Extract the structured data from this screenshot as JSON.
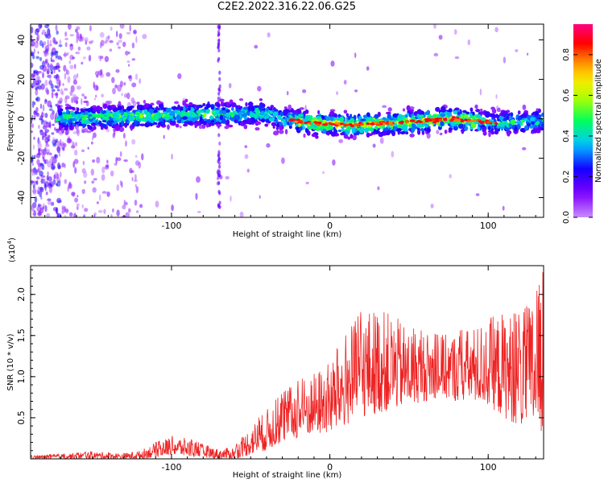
{
  "page_title": "C2E2.2022.316.22.06.G25",
  "chart_data": [
    {
      "type": "heatmap",
      "title": "C2E2.2022.316.22.06.G25",
      "xlabel": "Height of straight line (km)",
      "ylabel": "Frequency (Hz)",
      "xlim": [
        -189,
        135
      ],
      "ylim": [
        -50,
        48
      ],
      "x_ticks": [
        -100,
        0,
        100
      ],
      "y_ticks": [
        -40,
        -20,
        0,
        20,
        40
      ],
      "colorbar": {
        "label": "Normalized spectral amplitude",
        "range": [
          0.0,
          0.95
        ],
        "ticks": [
          "0.0",
          "0.2",
          "0.4",
          "0.6",
          "0.8"
        ],
        "colormap": "rainbow",
        "colors": [
          "#ffffff",
          "#8000ff",
          "#0000ff",
          "#00e5ff",
          "#00ff40",
          "#ffff00",
          "#ff8000",
          "#ff0000",
          "#ff0080"
        ]
      },
      "ridge": {
        "x": [
          -170,
          -150,
          -130,
          -110,
          -90,
          -70,
          -60,
          -45,
          -30,
          -15,
          0,
          15,
          30,
          45,
          60,
          75,
          90,
          105,
          120,
          135
        ],
        "frequency": [
          0.5,
          0.5,
          1,
          1.5,
          2,
          2.5,
          2,
          3,
          0,
          -2,
          -2.5,
          -3,
          -2.5,
          -2,
          -1,
          0,
          -1,
          -2,
          -1.5,
          -1
        ]
      },
      "grid": false
    },
    {
      "type": "line",
      "xlabel": "Height of straight line (km)",
      "ylabel": "SNR (10 * v/v)",
      "scale_label": "(x10",
      "scale_exp": "4",
      "xlim": [
        -189,
        135
      ],
      "ylim": [
        0,
        2.35
      ],
      "x_ticks": [
        -100,
        0,
        100
      ],
      "y_ticks": [
        "0.5",
        "1.0",
        "1.5",
        "2.0"
      ],
      "series": [
        {
          "color": "#ee2222",
          "envelope": {
            "x": [
              -189,
              -170,
              -150,
              -130,
              -120,
              -110,
              -100,
              -90,
              -80,
              -70,
              -60,
              -50,
              -40,
              -30,
              -20,
              -10,
              0,
              10,
              20,
              30,
              40,
              50,
              60,
              70,
              80,
              90,
              100,
              110,
              120,
              130,
              135
            ],
            "low": [
              0.0,
              0.0,
              0.0,
              0.0,
              0.0,
              0.02,
              0.05,
              0.03,
              0.02,
              0.0,
              0.0,
              0.05,
              0.1,
              0.2,
              0.25,
              0.3,
              0.3,
              0.4,
              0.5,
              0.55,
              0.6,
              0.65,
              0.7,
              0.75,
              0.7,
              0.7,
              0.65,
              0.5,
              0.4,
              0.35,
              0.3
            ],
            "high": [
              0.04,
              0.06,
              0.09,
              0.07,
              0.1,
              0.2,
              0.28,
              0.25,
              0.18,
              0.12,
              0.15,
              0.4,
              0.6,
              0.8,
              0.95,
              1.05,
              1.2,
              1.5,
              1.8,
              1.85,
              1.75,
              1.6,
              1.55,
              1.5,
              1.55,
              1.6,
              1.7,
              1.8,
              1.75,
              2.0,
              2.3
            ]
          }
        }
      ],
      "grid": false
    }
  ]
}
